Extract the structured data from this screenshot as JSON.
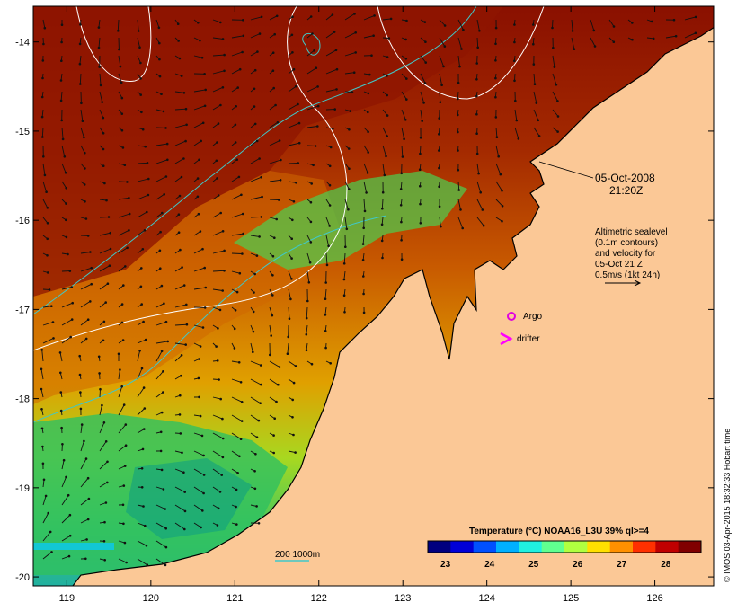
{
  "map": {
    "lon_ticks": [
      "119",
      "120",
      "121",
      "122",
      "123",
      "124",
      "125",
      "126"
    ],
    "lat_ticks": [
      "-14",
      "-15",
      "-16",
      "-17",
      "-18",
      "-19",
      "-20"
    ],
    "lon_range": [
      118.6,
      126.7
    ],
    "lat_range": [
      -20.1,
      -13.6
    ]
  },
  "annotations": {
    "date": "05-Oct-2008",
    "time": "21:20Z",
    "altimetry": [
      "Altimetric sealevel",
      "(0.1m contours)",
      "and velocity for",
      "05-Oct 21 Z",
      "0.5m/s (1kt 24h)"
    ],
    "argo_label": "Argo",
    "drifter_label": "drifter",
    "depth_legend": "200  1000m"
  },
  "colorbar": {
    "title": "Temperature (°C) NOAA16_L3U 39% ql>=4",
    "ticks": [
      "23",
      "24",
      "25",
      "26",
      "27",
      "28"
    ],
    "range": [
      22.6,
      28.8
    ],
    "colors": [
      "#00007f",
      "#0000d8",
      "#0050ff",
      "#00b0ff",
      "#20f0e0",
      "#60ff90",
      "#b0ff40",
      "#ffe000",
      "#ff9000",
      "#ff3000",
      "#c00000",
      "#800000"
    ]
  },
  "credit": "© IMOS 03-Apr-2015 18:32:33 Hobart time",
  "colors": {
    "land": "#fbc896",
    "contour_white": "#ffffff",
    "contour_depth": "#40c8c8",
    "argo": "#e000e0",
    "drifter": "#ff00ff"
  }
}
